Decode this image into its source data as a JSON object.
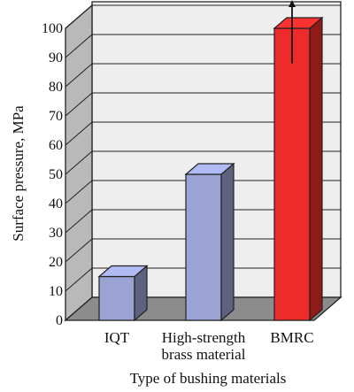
{
  "chart_data": {
    "type": "bar",
    "xlabel": "Type of bushing materials",
    "ylabel": "Surface pressure, MPa",
    "ylim": [
      0,
      100
    ],
    "yticks": [
      0,
      10,
      20,
      30,
      40,
      50,
      60,
      70,
      80,
      90,
      100
    ],
    "grid": true,
    "categories": [
      {
        "lines": [
          "IQT"
        ]
      },
      {
        "lines": [
          "High-strength",
          "brass material"
        ]
      },
      {
        "lines": [
          "BMRC"
        ]
      }
    ],
    "values": [
      15,
      50,
      100
    ],
    "bar_colors": [
      "#9aa3d3",
      "#9aa3d3",
      "#ee2b2b"
    ],
    "annotation": "up-arrow on BMRC bar (exceeds 100 MPa)"
  }
}
